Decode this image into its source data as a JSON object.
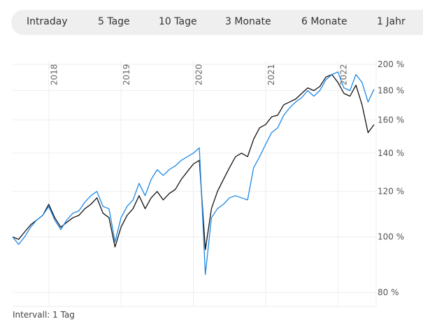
{
  "tabs": [
    "Intraday",
    "5 Tage",
    "10 Tage",
    "3 Monate",
    "6 Monate",
    "1 Jahr"
  ],
  "footer": "Intervall: 1 Tag",
  "chart_data": {
    "type": "line",
    "y_scale": "log",
    "ylim": [
      80,
      200
    ],
    "xlim": [
      "2017-07",
      "2022-07"
    ],
    "y_ticks": [
      "80 %",
      "100 %",
      "120 %",
      "140 %",
      "160 %",
      "180 %",
      "200 %"
    ],
    "y_tick_values": [
      80,
      100,
      120,
      140,
      160,
      180,
      200
    ],
    "x_ticks": [
      "2018",
      "2019",
      "2020",
      "2021",
      "2022"
    ],
    "grid": true,
    "x": [
      "2017-07",
      "2017-08",
      "2017-09",
      "2017-10",
      "2017-11",
      "2017-12",
      "2018-01",
      "2018-02",
      "2018-03",
      "2018-04",
      "2018-05",
      "2018-06",
      "2018-07",
      "2018-08",
      "2018-09",
      "2018-10",
      "2018-11",
      "2018-12",
      "2019-01",
      "2019-02",
      "2019-03",
      "2019-04",
      "2019-05",
      "2019-06",
      "2019-07",
      "2019-08",
      "2019-09",
      "2019-10",
      "2019-11",
      "2019-12",
      "2020-01",
      "2020-02",
      "2020-03",
      "2020-04",
      "2020-05",
      "2020-06",
      "2020-07",
      "2020-08",
      "2020-09",
      "2020-10",
      "2020-11",
      "2020-12",
      "2021-01",
      "2021-02",
      "2021-03",
      "2021-04",
      "2021-05",
      "2021-06",
      "2021-07",
      "2021-08",
      "2021-09",
      "2021-10",
      "2021-11",
      "2021-12",
      "2022-01",
      "2022-02",
      "2022-03",
      "2022-04",
      "2022-05",
      "2022-06",
      "2022-07"
    ],
    "series": [
      {
        "color": "#111111",
        "values": [
          100,
          99,
          102,
          105,
          107,
          109,
          114,
          108,
          104,
          106,
          108,
          109,
          112,
          114,
          117,
          110,
          108,
          96,
          104,
          109,
          112,
          118,
          112,
          117,
          120,
          116,
          119,
          121,
          126,
          130,
          134,
          136,
          95,
          112,
          120,
          126,
          132,
          138,
          140,
          138,
          148,
          155,
          157,
          162,
          163,
          170,
          172,
          174,
          178,
          182,
          180,
          183,
          190,
          192,
          186,
          178,
          176,
          184,
          170,
          152,
          157
        ]
      },
      {
        "color": "#1e88e5",
        "values": [
          100,
          97,
          100,
          104,
          107,
          109,
          113,
          107,
          103,
          107,
          110,
          111,
          115,
          118,
          120,
          113,
          112,
          98,
          108,
          113,
          116,
          124,
          118,
          126,
          131,
          128,
          131,
          133,
          136,
          138,
          140,
          143,
          86,
          108,
          112,
          114,
          117,
          118,
          117,
          116,
          132,
          138,
          145,
          152,
          155,
          163,
          168,
          172,
          175,
          180,
          176,
          180,
          188,
          192,
          194,
          182,
          180,
          192,
          186,
          172,
          181
        ]
      }
    ]
  }
}
